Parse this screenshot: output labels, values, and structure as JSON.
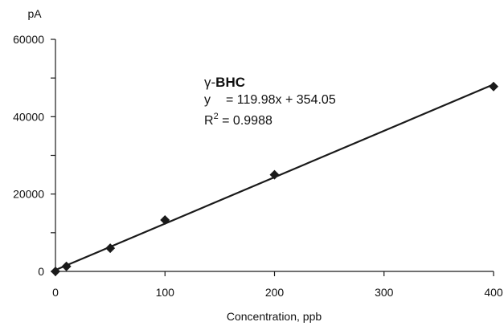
{
  "chart_data": {
    "type": "scatter",
    "title": "",
    "xlabel": "Concentration, ppb",
    "ylabel": "pA",
    "xlim": [
      0,
      400
    ],
    "ylim": [
      0,
      60000
    ],
    "xticks": [
      0,
      100,
      200,
      300,
      400
    ],
    "yticks": [
      0,
      20000,
      40000,
      60000
    ],
    "yticks_minor": [
      10000,
      30000,
      50000
    ],
    "grid": false,
    "legend": "none",
    "series": [
      {
        "x": [
          0,
          10,
          50,
          100,
          200,
          400
        ],
        "y": [
          0,
          1300,
          6000,
          13300,
          25000,
          47800
        ],
        "marker": "diamond",
        "color": "#1a1a1a"
      }
    ],
    "trendline": {
      "slope": 119.98,
      "intercept": 354.05,
      "x_range": [
        0,
        400
      ],
      "color": "#1a1a1a"
    },
    "annotation": {
      "compound_prefix": "γ-",
      "compound_name": "BHC",
      "equation_var": "y",
      "equation_rhs": "= 119.98x + 354.05",
      "r2_label": "R",
      "r2_sup": "2",
      "r2_value": " = 0.9988"
    }
  }
}
